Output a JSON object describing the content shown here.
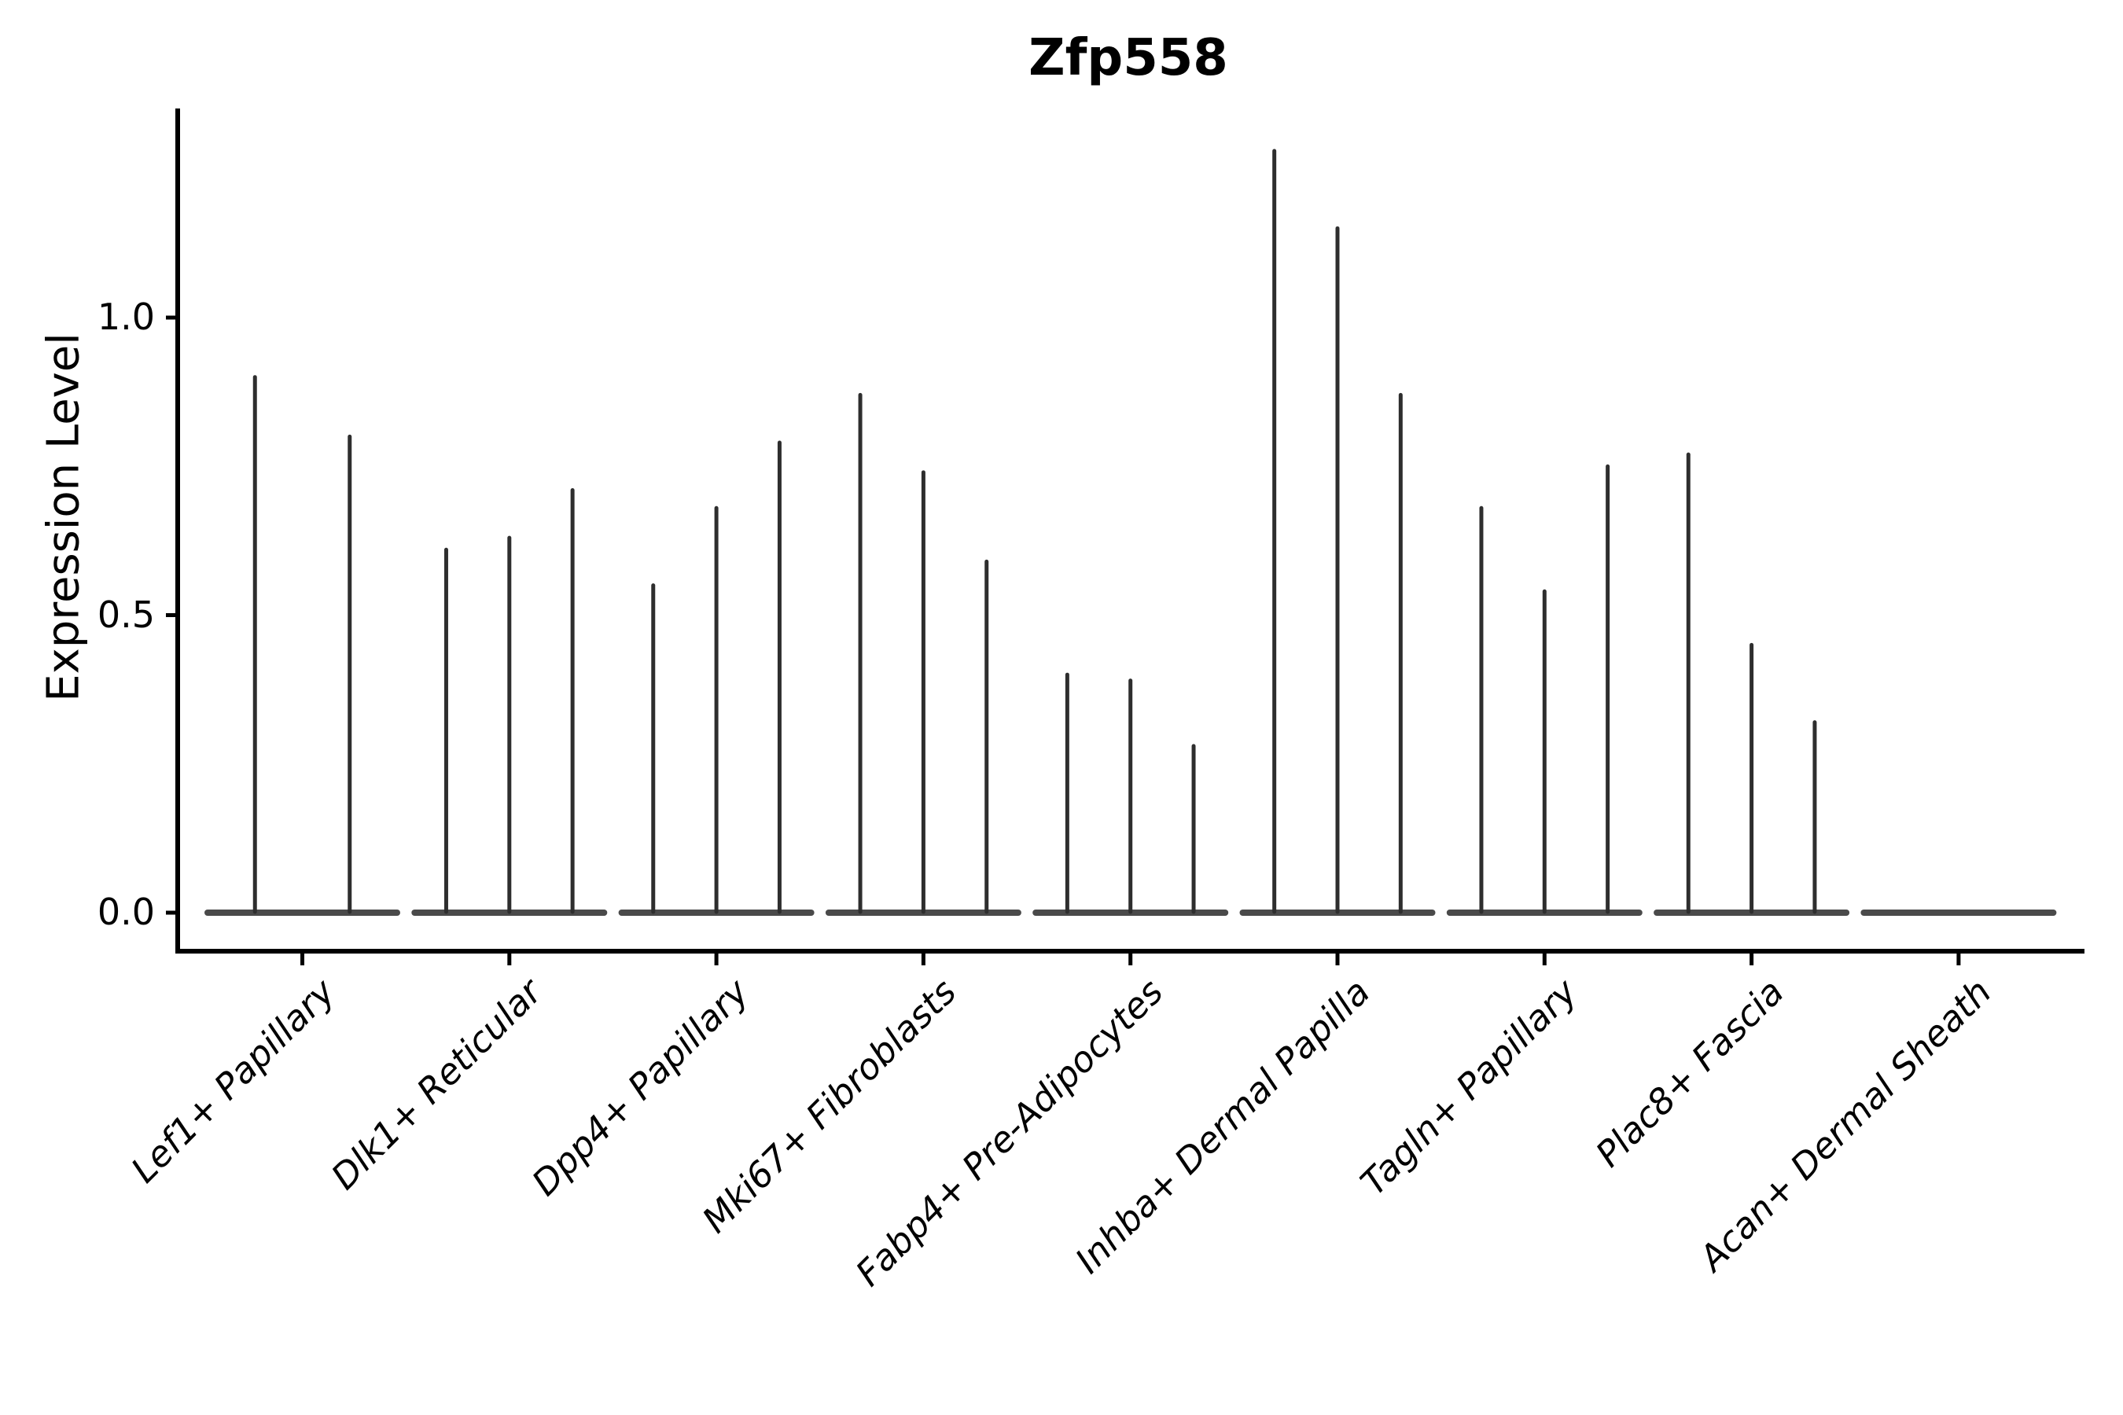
{
  "title": "Zfp558",
  "chart_data": {
    "type": "violin",
    "title": "Zfp558",
    "xlabel": "",
    "ylabel": "Expression Level",
    "ylim": [
      0,
      1.35
    ],
    "yticks": [
      0.0,
      0.5,
      1.0
    ],
    "ytick_labels": [
      "0.0",
      "0.5",
      "1.0"
    ],
    "grid": false,
    "legend_position": "none",
    "categories": [
      "Lef1+ Papillary",
      "Dlk1+ Reticular",
      "Dpp4+ Papillary",
      "Mki67+ Fibroblasts",
      "Fabp4+ Pre-Adipocytes",
      "Inhba+ Dermal Papilla",
      "Tagln+ Papillary",
      "Plac8+ Fascia",
      "Acan+ Dermal Sheath"
    ],
    "groups": [
      {
        "category": "Lef1+ Papillary",
        "violin_maxima": [
          0.9,
          0.8
        ]
      },
      {
        "category": "Dlk1+ Reticular",
        "violin_maxima": [
          0.61,
          0.63,
          0.71
        ]
      },
      {
        "category": "Dpp4+ Papillary",
        "violin_maxima": [
          0.55,
          0.68,
          0.79
        ]
      },
      {
        "category": "Mki67+ Fibroblasts",
        "violin_maxima": [
          0.87,
          0.74,
          0.59
        ]
      },
      {
        "category": "Fabp4+ Pre-Adipocytes",
        "violin_maxima": [
          0.4,
          0.39,
          0.28
        ]
      },
      {
        "category": "Inhba+ Dermal Papilla",
        "violin_maxima": [
          1.28,
          1.15,
          0.87
        ]
      },
      {
        "category": "Tagln+ Papillary",
        "violin_maxima": [
          0.68,
          0.54,
          0.75
        ]
      },
      {
        "category": "Plac8+ Fascia",
        "violin_maxima": [
          0.77,
          0.45,
          0.32
        ]
      },
      {
        "category": "Acan+ Dermal Sheath",
        "violin_maxima": []
      }
    ],
    "colors": {
      "violin_spike": "#2e2e2e",
      "violin_base": "#4a4a4a",
      "axis": "#000000",
      "text": "#000000",
      "background": "#ffffff"
    }
  }
}
